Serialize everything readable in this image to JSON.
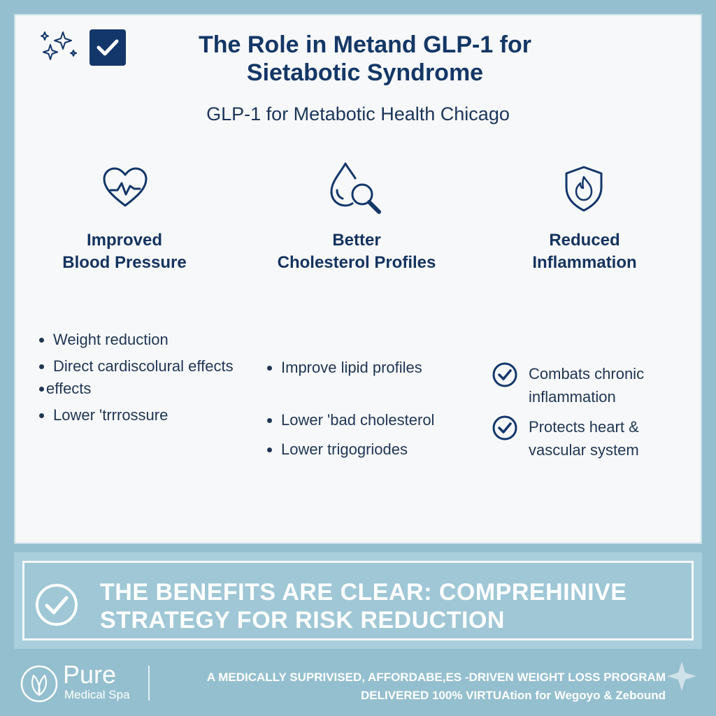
{
  "header": {
    "title_line1": "The Role in Metand GLP-1 for",
    "title_line2": "Sietabotic Syndrome",
    "subtitle": "GLP-1 for Metabotic Health Chicago"
  },
  "columns": [
    {
      "icon": "heart-pulse-icon",
      "heading_line1": "Improved",
      "heading_line2": "Blood Pressure",
      "bullets": [
        "Weight reduction",
        "Direct cardiscolural effects",
        "effects",
        "Lower 'trrrossure"
      ]
    },
    {
      "icon": "drop-magnifier-icon",
      "heading_line1": "Better",
      "heading_line2": "Cholesterol Profiles",
      "bullets": [
        "Improve lipid profiles",
        "Lower 'bad cholesterol",
        "Lower trigogriodes"
      ]
    },
    {
      "icon": "shield-flame-icon",
      "heading_line1": "Reduced",
      "heading_line2": "Inflammation",
      "checks": [
        {
          "line1": "Combats chronic",
          "line2": "inflammation"
        },
        {
          "line1": "Protects heart &",
          "line2": "vascular system"
        }
      ]
    }
  ],
  "banner": {
    "line1": "THE BENEFITS  ARE CLEAR: COMPREHINIVE",
    "line2": "STRATEGY FOR RISK REDUCTION"
  },
  "footer": {
    "brand": "Pure",
    "brand_sub": "Medical Spa",
    "line1": "A MEDICALLY SUPRIVISED, AFFORDABE,ES -DRIVEN WEIGHT LOSS PROGRAM",
    "line2": "DELIVERED 100% VIRTUAtion for Wegoyo & Zebound"
  },
  "colors": {
    "navy": "#133766",
    "background": "#94bfcf",
    "panel": "#f7f8f9",
    "banner": "#a9cfdc"
  }
}
